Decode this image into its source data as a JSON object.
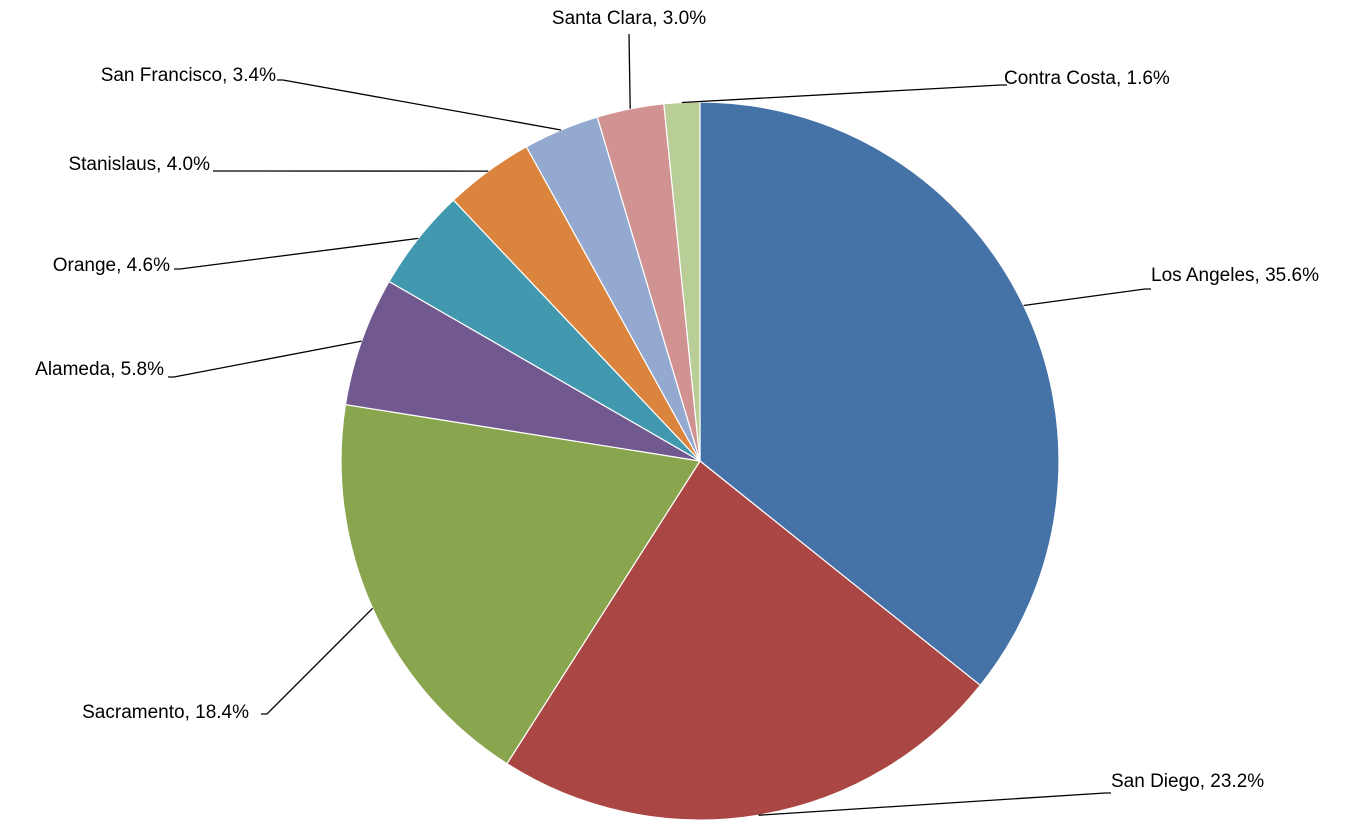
{
  "chart_data": {
    "type": "pie",
    "labels": [
      "Los Angeles",
      "San Diego",
      "Sacramento",
      "Alameda",
      "Orange",
      "Stanislaus",
      "San Francisco",
      "Santa Clara",
      "Contra Costa"
    ],
    "values": [
      35.6,
      23.2,
      18.4,
      5.8,
      4.6,
      4.0,
      3.4,
      3.0,
      1.6
    ],
    "value_format": "percent",
    "data_labels": [
      "Los Angeles, 35.6%",
      "San Diego, 23.2%",
      "Sacramento, 18.4%",
      "Alameda, 5.8%",
      "Orange, 4.6%",
      "Stanislaus, 4.0%",
      "San Francisco, 3.4%",
      "Santa Clara, 3.0%",
      "Contra Costa, 1.6%"
    ],
    "colors": [
      "#4572A7",
      "#AA4643",
      "#89A54E",
      "#71588F",
      "#4198AF",
      "#DB843D",
      "#93A9CF",
      "#D19392",
      "#B9CD96"
    ],
    "start_angle": "top",
    "direction": "clockwise",
    "legend": "none",
    "label_placement": "outside with leader lines"
  }
}
